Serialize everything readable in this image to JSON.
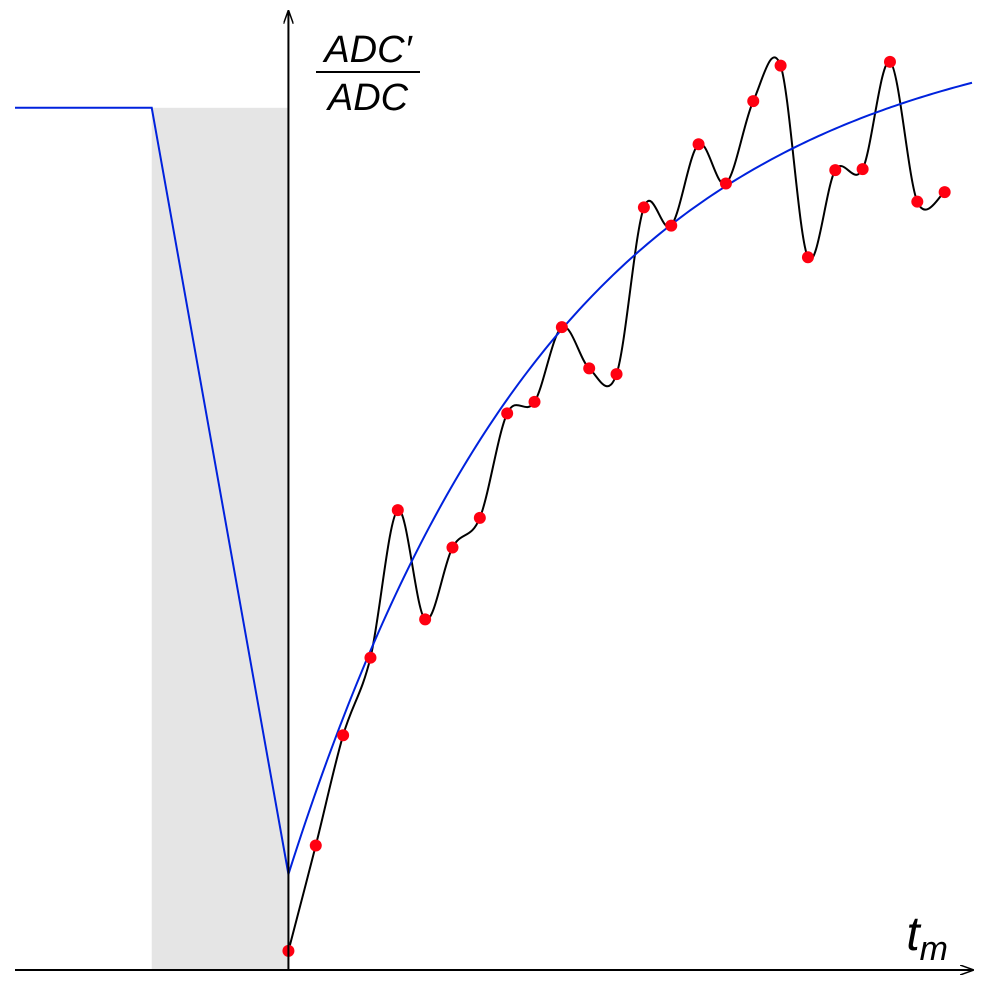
{
  "chart_data": {
    "type": "line",
    "title": "",
    "xlabel": "t",
    "xlabel_subscript": "m",
    "ylabel_numerator": "ADC′",
    "ylabel_denominator": "ADC",
    "grid": false,
    "xlim": [
      -10,
      25
    ],
    "ylim": [
      0,
      1.0
    ],
    "baseline_level": 0.9,
    "shaded_interval": [
      -5,
      0
    ],
    "colors": {
      "measured_line": "#000000",
      "measured_points": "#ff0011",
      "model_curve": "#0022dd",
      "shaded_region": "#e5e5e5",
      "axes": "#000000"
    },
    "series": [
      {
        "role": "model",
        "segments": [
          {
            "kind": "constant",
            "x": [
              -10,
              -5
            ],
            "y": 0.9
          },
          {
            "kind": "linear",
            "x": [
              -5,
              0
            ],
            "y": [
              0.9,
              0.1
            ]
          },
          {
            "kind": "exponential_recovery",
            "x_start": 0,
            "x_end": 25,
            "y_start": 0.1,
            "y_asymptote": 1.0,
            "time_constant": 10.0
          }
        ]
      },
      {
        "role": "measured",
        "x": [
          0,
          1,
          2,
          3,
          4,
          5,
          6,
          7,
          8,
          9,
          10,
          11,
          12,
          13,
          14,
          15,
          16,
          17,
          18,
          19,
          20,
          21,
          22,
          23,
          24
        ],
        "y": [
          0.02,
          0.13,
          0.245,
          0.326,
          0.48,
          0.366,
          0.441,
          0.472,
          0.581,
          0.593,
          0.671,
          0.628,
          0.622,
          0.796,
          0.777,
          0.862,
          0.821,
          0.907,
          0.944,
          0.744,
          0.835,
          0.836,
          0.948,
          0.802,
          0.812
        ]
      }
    ]
  }
}
